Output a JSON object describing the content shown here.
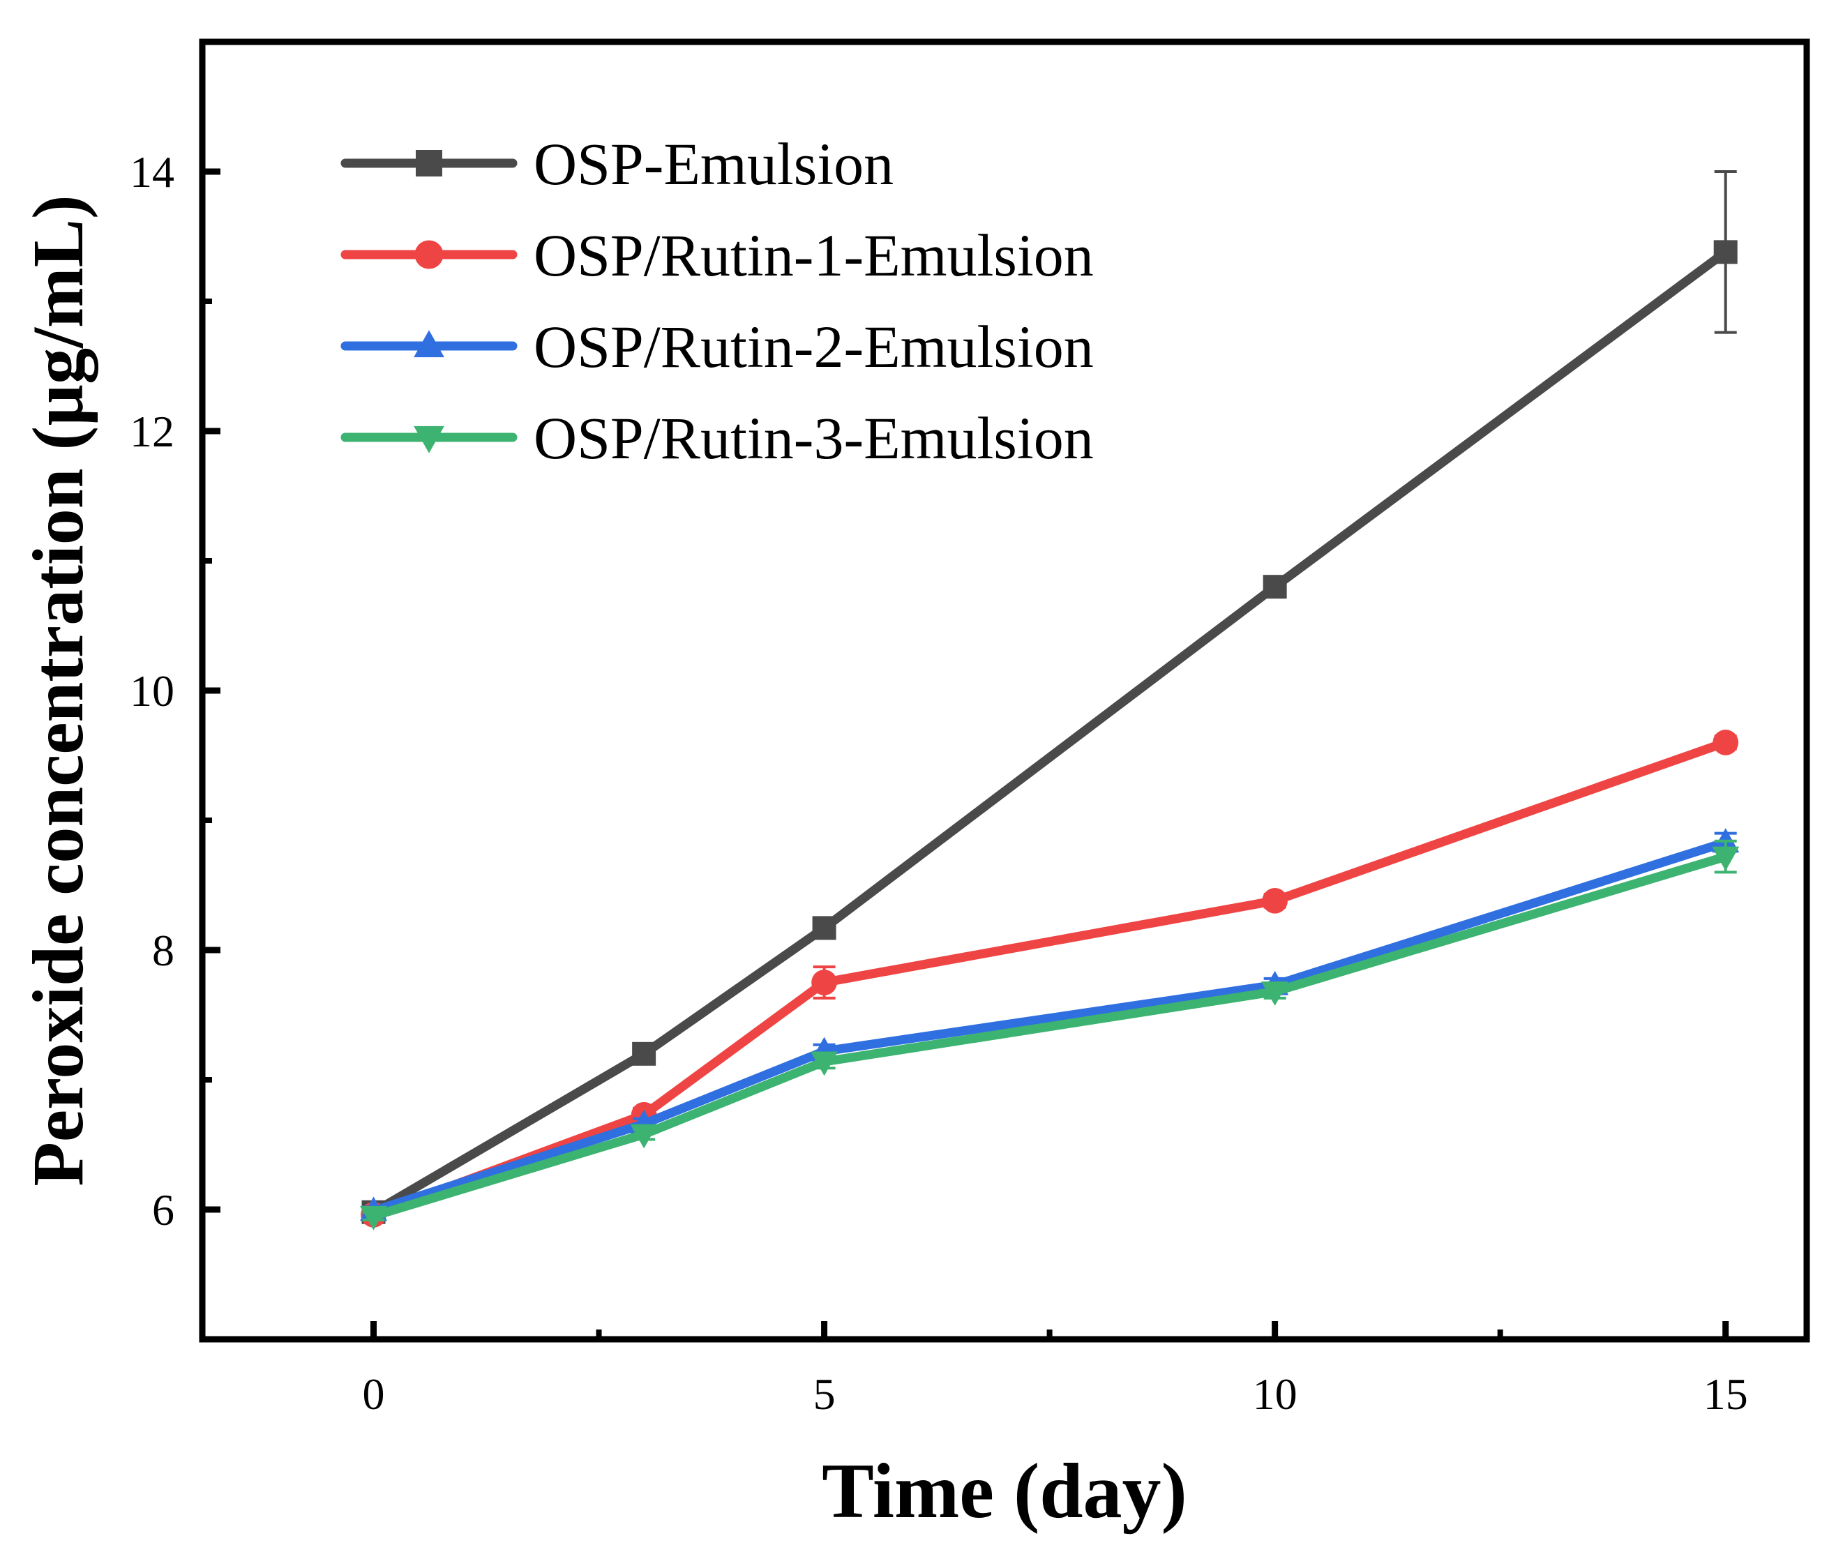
{
  "chart_data": {
    "type": "line",
    "xlabel": "Time (day)",
    "ylabel": "Peroxide concentration (µg/mL)",
    "xlim": [
      -1.9,
      15.9
    ],
    "ylim": [
      5.0,
      15.0
    ],
    "xticks": [
      0,
      5,
      10,
      15
    ],
    "yticks": [
      6,
      8,
      10,
      12,
      14
    ],
    "grid": false,
    "legend_position": "top-left",
    "x": [
      0,
      3,
      5,
      10,
      15
    ],
    "series": [
      {
        "name": "OSP-Emulsion",
        "marker": "square",
        "color": "#4a4a4a",
        "values": [
          5.98,
          7.2,
          8.17,
          10.8,
          13.38
        ],
        "errors": [
          0.03,
          0.05,
          0.06,
          0.05,
          0.62
        ]
      },
      {
        "name": "OSP/Rutin-1-Emulsion",
        "marker": "circle",
        "color": "#ef4444",
        "values": [
          5.96,
          6.73,
          7.75,
          8.38,
          9.6
        ],
        "errors": [
          0.03,
          0.05,
          0.12,
          0.05,
          0.05
        ]
      },
      {
        "name": "OSP/Rutin-2-Emulsion",
        "marker": "triangle-up",
        "color": "#2f6fe0",
        "values": [
          5.99,
          6.66,
          7.22,
          7.73,
          8.83
        ],
        "errors": [
          0.03,
          0.04,
          0.05,
          0.05,
          0.07
        ]
      },
      {
        "name": "OSP/Rutin-3-Emulsion",
        "marker": "triangle-down",
        "color": "#3cb371",
        "values": [
          5.95,
          6.58,
          7.14,
          7.68,
          8.72
        ],
        "errors": [
          0.03,
          0.04,
          0.05,
          0.05,
          0.12
        ]
      }
    ]
  }
}
